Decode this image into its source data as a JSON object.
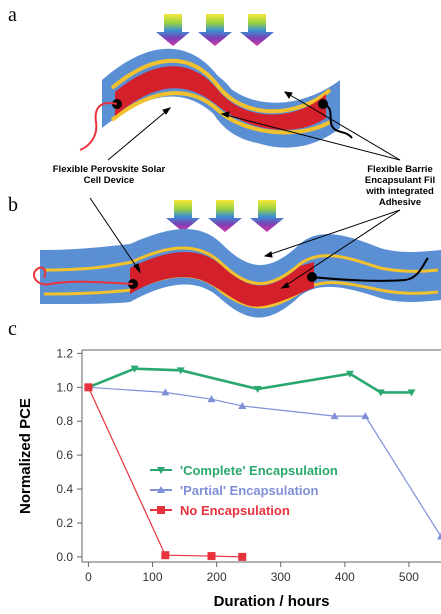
{
  "panels": {
    "a": {
      "letter": "a"
    },
    "b": {
      "letter": "b"
    },
    "c": {
      "letter": "c"
    }
  },
  "annotations": {
    "device": [
      "Flexible Perovskite Solar",
      "Cell Device"
    ],
    "barrier": [
      "Flexible Barrie",
      "Encapsulant Fil",
      "with integrated",
      "Adhesive"
    ]
  },
  "colors": {
    "barrier": "#5b8fd4",
    "adhesive": "#f2c12e",
    "device": "#d3202a",
    "arrow_gradient": [
      "#f5e93a",
      "#9ad041",
      "#3a8fd6",
      "#7e3fb3",
      "#d33aa8"
    ],
    "complete": "#2aa870",
    "partial": "#8090d8",
    "none": "#e8323c"
  },
  "chart_data": {
    "type": "line",
    "title": "",
    "xlabel": "Duration / hours",
    "ylabel": "Normalized PCE",
    "xlim": [
      -10,
      550
    ],
    "ylim": [
      -0.03,
      1.22
    ],
    "xticks": [
      0,
      100,
      200,
      300,
      400,
      500
    ],
    "yticks": [
      0.0,
      0.2,
      0.4,
      0.6,
      0.8,
      1.0,
      1.2
    ],
    "xtick_labels": [
      "0",
      "100",
      "200",
      "300",
      "400",
      "500"
    ],
    "ytick_labels": [
      "0.0",
      "0.2",
      "0.4",
      "0.6",
      "0.8",
      "1.0",
      "1.2"
    ],
    "grid": false,
    "legend_position": "bottom-middle",
    "series": [
      {
        "name": "'Complete' Encapsulation",
        "color": "#2aa870",
        "marker": "triangle-down",
        "x": [
          0,
          72,
          144,
          264,
          408,
          456,
          504
        ],
        "y": [
          1.0,
          1.11,
          1.1,
          0.99,
          1.08,
          0.97,
          0.97
        ]
      },
      {
        "name": "'Partial' Encapsulation",
        "color": "#8090d8",
        "marker": "triangle-up",
        "x": [
          0,
          120,
          192,
          240,
          384,
          432,
          550
        ],
        "y": [
          1.0,
          0.97,
          0.93,
          0.89,
          0.83,
          0.83,
          0.12
        ]
      },
      {
        "name": "No Encapsulation",
        "color": "#e8323c",
        "marker": "square",
        "x": [
          0,
          120,
          192,
          240
        ],
        "y": [
          1.0,
          0.01,
          0.005,
          0.0
        ]
      }
    ]
  }
}
